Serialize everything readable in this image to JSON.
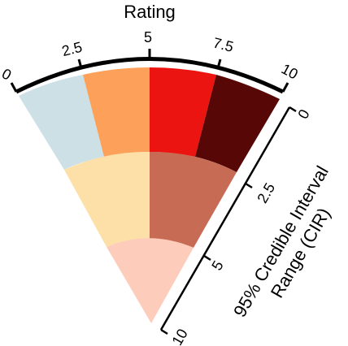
{
  "legend": {
    "rating_title": "Rating",
    "rating_ticks": [
      "0",
      "2.5",
      "5",
      "7.5",
      "10"
    ],
    "cir_title_line1": "95% Credible Interval",
    "cir_title_line2": "Range (CIR)",
    "cir_ticks": [
      "0",
      "2.5",
      "5",
      "10"
    ]
  },
  "palette": {
    "row1": [
      "#cde0e5",
      "#fda15a",
      "#ec1410",
      "#560706"
    ],
    "row2": [
      "#fde0a7",
      "#c76b55"
    ],
    "row3": [
      "#fdccbb"
    ]
  }
}
